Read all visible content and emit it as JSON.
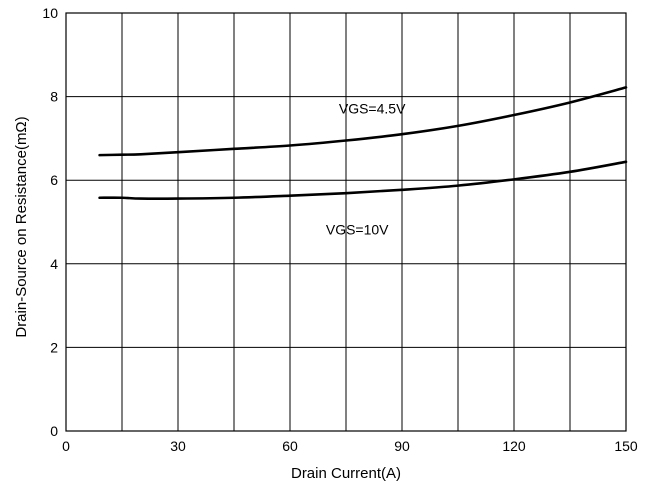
{
  "chart_data": {
    "type": "line",
    "title": "",
    "xlabel": "Drain Current(A)",
    "ylabel": "Drain-Source on Resistance(mΩ)",
    "xlim": [
      0,
      150
    ],
    "ylim": [
      0,
      10
    ],
    "xticks": [
      0,
      30,
      60,
      90,
      120,
      150
    ],
    "yticks": [
      0,
      2,
      4,
      6,
      8,
      10
    ],
    "grid": true,
    "series": [
      {
        "name": "VGS=4.5V",
        "x": [
          9,
          15,
          20,
          30,
          45,
          60,
          75,
          90,
          105,
          120,
          135,
          150
        ],
        "y": [
          6.6,
          6.61,
          6.62,
          6.67,
          6.75,
          6.83,
          6.95,
          7.1,
          7.3,
          7.56,
          7.86,
          8.22
        ]
      },
      {
        "name": "VGS=10V",
        "x": [
          9,
          15,
          20,
          30,
          45,
          60,
          75,
          90,
          105,
          120,
          135,
          150
        ],
        "y": [
          5.58,
          5.58,
          5.56,
          5.56,
          5.58,
          5.63,
          5.69,
          5.77,
          5.87,
          6.02,
          6.2,
          6.44
        ]
      }
    ],
    "annotations": [
      {
        "text": "VGS=4.5V",
        "series": 0,
        "x": 82,
        "y": 7.6
      },
      {
        "text": "VGS=10V",
        "series": 1,
        "x": 78,
        "y": 4.7
      }
    ]
  }
}
